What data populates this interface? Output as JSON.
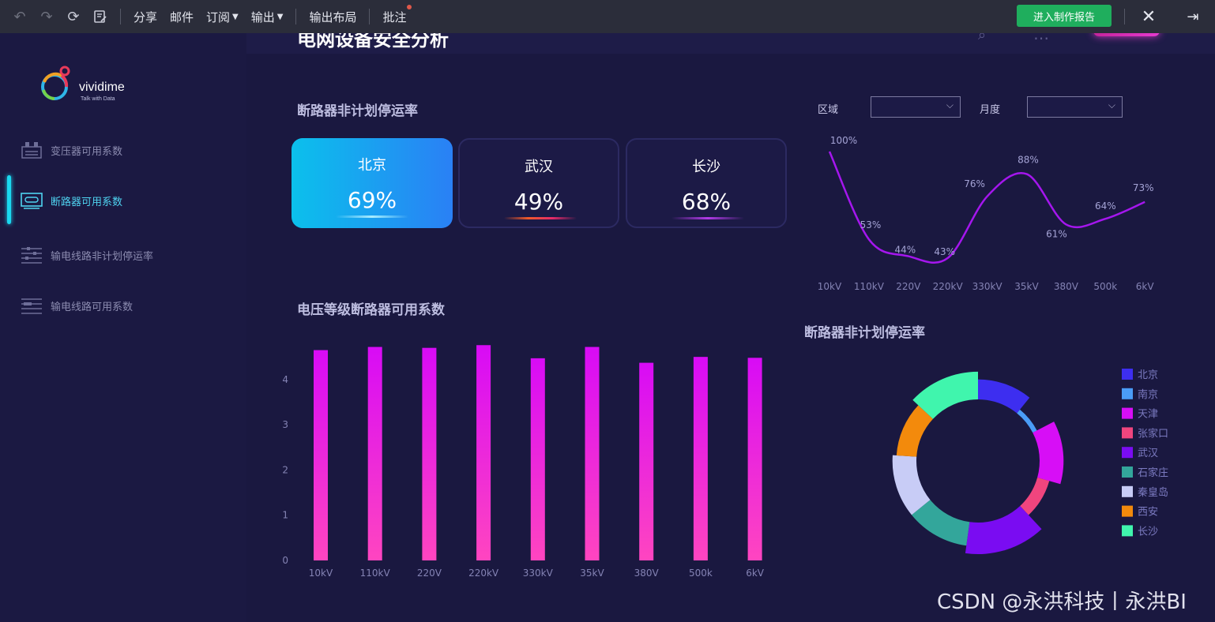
{
  "toolbar": {
    "menus": [
      "分享",
      "邮件",
      "订阅",
      "输出",
      "输出布局",
      "批注"
    ],
    "report_button": "进入制作报告"
  },
  "header": {
    "title_fragment": "电网设备安全分析"
  },
  "logo": {
    "name": "vividime",
    "tagline": "Talk with Data"
  },
  "sidebar": {
    "items": [
      {
        "label": "变压器可用系数",
        "icon": "transformer-icon",
        "active": false
      },
      {
        "label": "断路器可用系数",
        "icon": "breaker-icon",
        "active": true
      },
      {
        "label": "输电线路非计划停运率",
        "icon": "line-outage-icon",
        "active": false
      },
      {
        "label": "输电线路可用系数",
        "icon": "line-availability-icon",
        "active": false
      }
    ]
  },
  "kpi": {
    "title": "断路器非计划停运率",
    "cards": [
      {
        "city": "北京",
        "value": "69%",
        "line_color": "#9be8ff"
      },
      {
        "city": "武汉",
        "value": "49%",
        "line_color": "#f05a2a"
      },
      {
        "city": "长沙",
        "value": "68%",
        "line_color": "#b23ae8"
      }
    ]
  },
  "filters": {
    "region_label": "区域",
    "region_value": "",
    "month_label": "月度",
    "month_value": ""
  },
  "bar_section": {
    "title": "电压等级断路器可用系数"
  },
  "donut_section": {
    "title": "断路器非计划停运率"
  },
  "chart_data": [
    {
      "type": "line",
      "title": "",
      "categories": [
        "10kV",
        "110kV",
        "220V",
        "220kV",
        "330kV",
        "35kV",
        "380V",
        "500k",
        "6kV"
      ],
      "values": [
        100,
        53,
        44,
        43,
        76,
        88,
        61,
        64,
        73
      ],
      "point_labels": [
        "100%",
        "53%",
        "44%",
        "43%",
        "76%",
        "88%",
        "61%",
        "64%",
        "73%"
      ],
      "color": "#a516ee",
      "grid": false
    },
    {
      "type": "bar",
      "title": "",
      "categories": [
        "10kV",
        "110kV",
        "220V",
        "220kV",
        "330kV",
        "35kV",
        "380V",
        "500k",
        "6kV"
      ],
      "values": [
        4.65,
        4.72,
        4.7,
        4.76,
        4.47,
        4.72,
        4.37,
        4.5,
        4.48
      ],
      "yticks": [
        "0",
        "1",
        "2",
        "3",
        "4"
      ],
      "ylim": [
        0,
        4.7
      ],
      "grid": false,
      "color_top": "#d80bf6",
      "color_bottom": "#ff45c0"
    },
    {
      "type": "pie",
      "title": "",
      "legend_position": "right",
      "slices": [
        {
          "name": "北京",
          "value": 10,
          "color": "#3d2ef0"
        },
        {
          "name": "南京",
          "value": 6,
          "color": "#4a9cf7"
        },
        {
          "name": "天津",
          "value": 11,
          "color": "#d70ef6"
        },
        {
          "name": "张家口",
          "value": 8,
          "color": "#f0457e"
        },
        {
          "name": "武汉",
          "value": 13,
          "color": "#7a0cf2"
        },
        {
          "name": "石家庄",
          "value": 11,
          "color": "#33a69b"
        },
        {
          "name": "秦皇岛",
          "value": 11,
          "color": "#c8ccf6"
        },
        {
          "name": "西安",
          "value": 10,
          "color": "#f38a0c"
        },
        {
          "name": "长沙",
          "value": 12,
          "color": "#40f5ad"
        }
      ]
    }
  ],
  "watermark": "CSDN @永洪科技丨永洪BI"
}
